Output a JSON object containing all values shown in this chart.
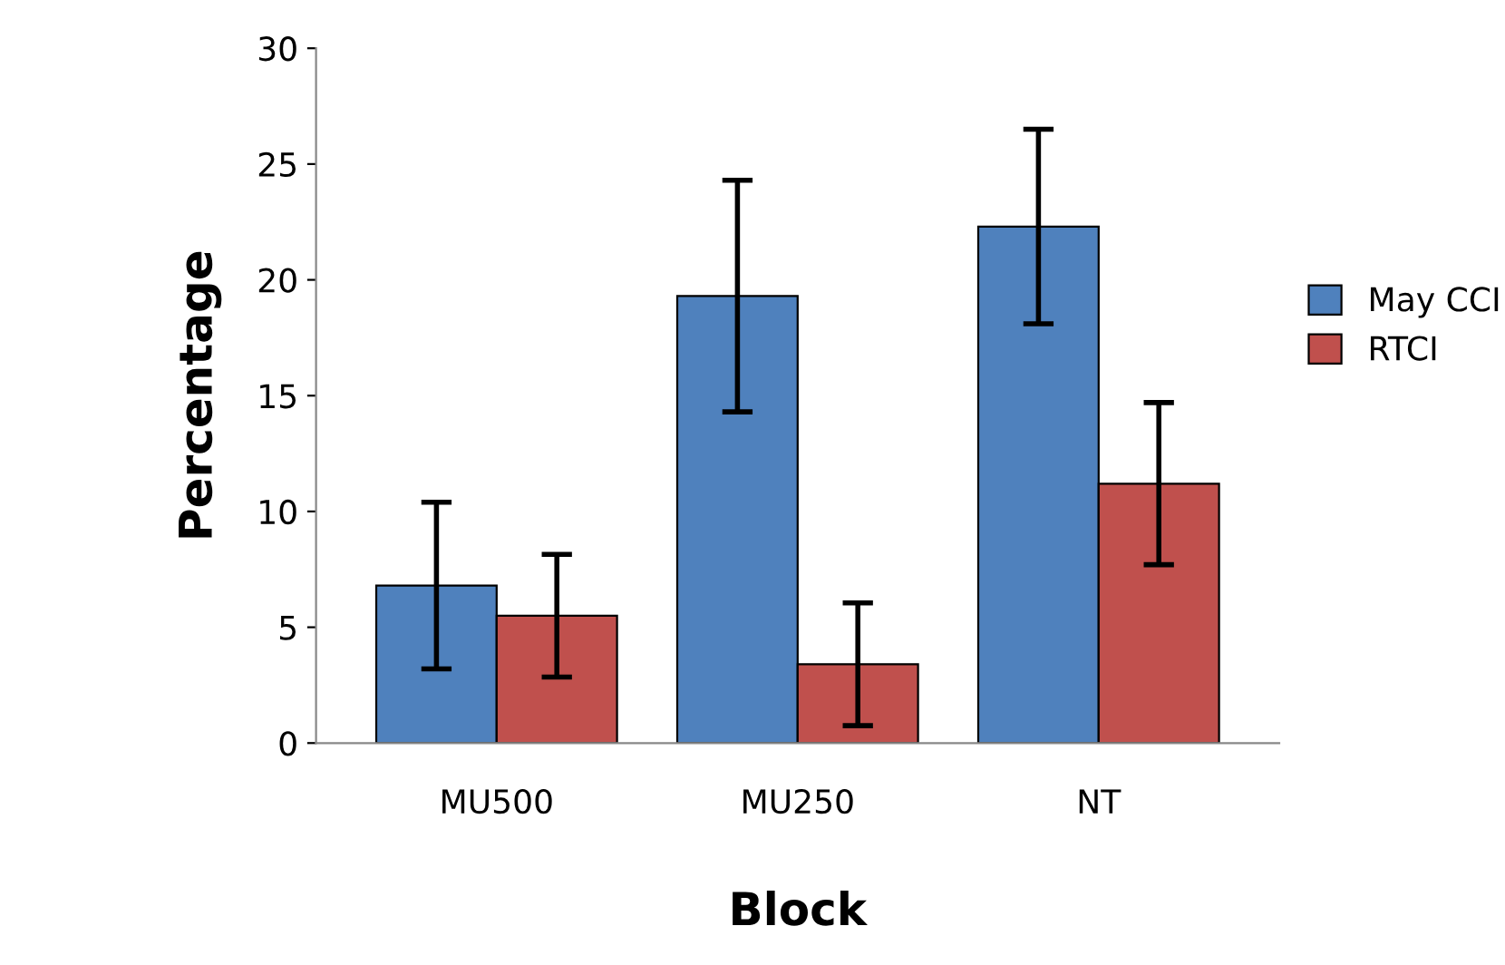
{
  "chart_data": {
    "type": "bar",
    "xlabel": "Block",
    "ylabel": "Percentage",
    "categories": [
      "MU500",
      "MU250",
      "NT"
    ],
    "series": [
      {
        "name": "May CCI",
        "color": "#4f81bd",
        "values": [
          6.8,
          19.3,
          22.3
        ],
        "errors": [
          3.6,
          5.0,
          4.2
        ]
      },
      {
        "name": "RTCI",
        "color": "#c0504d",
        "values": [
          5.5,
          3.4,
          11.2
        ],
        "errors": [
          2.65,
          2.65,
          3.5
        ]
      }
    ],
    "ylim": [
      0,
      30
    ],
    "yticks": [
      0,
      5,
      10,
      15,
      20,
      25,
      30
    ],
    "grid": false,
    "legend": "right"
  }
}
